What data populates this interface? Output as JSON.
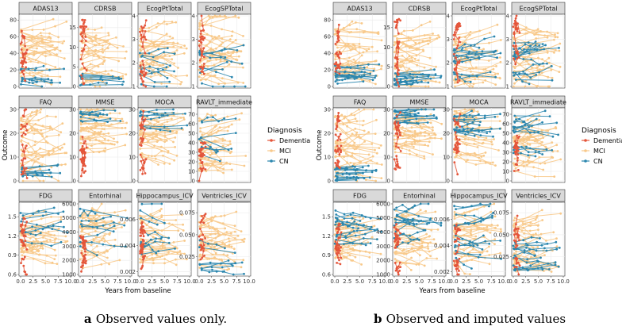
{
  "chart_data": [
    {
      "type": "line",
      "id": "a",
      "caption": {
        "letter": "a",
        "text": "Observed values only."
      },
      "xlabel": "Years from baseline",
      "ylabel": "Outcome",
      "xticks": [
        "0.0",
        "2.5",
        "5.0",
        "7.5",
        "10.0"
      ],
      "xlim": [
        0,
        10
      ],
      "legend": {
        "title": "Diagnosis",
        "position": "right",
        "entries": [
          {
            "label": "Dementia",
            "color": "#E4553A"
          },
          {
            "label": "MCI",
            "color": "#F8C98A"
          },
          {
            "label": "CN",
            "color": "#2A86AE"
          }
        ]
      },
      "panels": [
        {
          "label": "ADAS13",
          "ylim": [
            0,
            85
          ],
          "yticks": [
            {
              "v": 0,
              "t": "0"
            },
            {
              "v": 20,
              "t": "20"
            },
            {
              "v": 40,
              "t": "40"
            },
            {
              "v": 60,
              "t": "60"
            },
            {
              "v": 80,
              "t": "80"
            }
          ],
          "ranges": {
            "Dementia": [
              15,
              70
            ],
            "MCI": [
              5,
              70
            ],
            "CN": [
              1,
              25
            ]
          }
        },
        {
          "label": "CDRSB",
          "ylim": [
            0,
            18
          ],
          "yticks": [
            {
              "v": 0,
              "t": "0"
            },
            {
              "v": 5,
              "t": "5"
            },
            {
              "v": 10,
              "t": "10"
            },
            {
              "v": 15,
              "t": "15"
            }
          ],
          "ranges": {
            "Dementia": [
              2,
              17
            ],
            "MCI": [
              0.5,
              14
            ],
            "CN": [
              0,
              4
            ]
          }
        },
        {
          "label": "EcogPtTotal",
          "ylim": [
            1,
            4
          ],
          "yticks": [
            {
              "v": 1,
              "t": "1"
            },
            {
              "v": 2,
              "t": "2"
            },
            {
              "v": 3,
              "t": "3"
            },
            {
              "v": 4,
              "t": "4"
            }
          ],
          "ranges": {
            "Dementia": [
              1.2,
              3.7
            ],
            "MCI": [
              1.1,
              3.4
            ],
            "CN": [
              1,
              2.8
            ]
          }
        },
        {
          "label": "EcogSPTotal",
          "ylim": [
            1,
            4
          ],
          "yticks": [
            {
              "v": 1,
              "t": "1"
            },
            {
              "v": 2,
              "t": "2"
            },
            {
              "v": 3,
              "t": "3"
            },
            {
              "v": 4,
              "t": "4"
            }
          ],
          "ranges": {
            "Dementia": [
              1.5,
              4
            ],
            "MCI": [
              1.1,
              3.8
            ],
            "CN": [
              1,
              3
            ]
          }
        },
        {
          "label": "FAQ",
          "ylim": [
            0,
            30
          ],
          "yticks": [
            {
              "v": 0,
              "t": "0"
            },
            {
              "v": 10,
              "t": "10"
            },
            {
              "v": 20,
              "t": "20"
            },
            {
              "v": 30,
              "t": "30"
            }
          ],
          "ranges": {
            "Dementia": [
              3,
              30
            ],
            "MCI": [
              0,
              28
            ],
            "CN": [
              0,
              6
            ]
          }
        },
        {
          "label": "MMSE",
          "ylim": [
            0,
            30
          ],
          "yticks": [
            {
              "v": 0,
              "t": "0"
            },
            {
              "v": 10,
              "t": "10"
            },
            {
              "v": 20,
              "t": "20"
            },
            {
              "v": 30,
              "t": "30"
            }
          ],
          "ranges": {
            "Dementia": [
              2,
              28
            ],
            "MCI": [
              12,
              30
            ],
            "CN": [
              24,
              30
            ]
          }
        },
        {
          "label": "MOCA",
          "ylim": [
            0,
            30
          ],
          "yticks": [
            {
              "v": 0,
              "t": "0"
            },
            {
              "v": 10,
              "t": "10"
            },
            {
              "v": 20,
              "t": "20"
            },
            {
              "v": 30,
              "t": "30"
            }
          ],
          "ranges": {
            "Dementia": [
              3,
              27
            ],
            "MCI": [
              10,
              30
            ],
            "CN": [
              20,
              30
            ]
          }
        },
        {
          "label": "RAVLT_immediate",
          "ylim": [
            0,
            75
          ],
          "yticks": [
            {
              "v": 0,
              "t": "0"
            },
            {
              "v": 10,
              "t": "10"
            },
            {
              "v": 20,
              "t": "20"
            },
            {
              "v": 30,
              "t": "30"
            },
            {
              "v": 40,
              "t": "40"
            },
            {
              "v": 50,
              "t": "50"
            },
            {
              "v": 60,
              "t": "60"
            },
            {
              "v": 70,
              "t": "70"
            }
          ],
          "ranges": {
            "Dementia": [
              2,
              45
            ],
            "MCI": [
              10,
              65
            ],
            "CN": [
              20,
              70
            ]
          }
        },
        {
          "label": "FDG",
          "ylim": [
            0.6,
            1.7
          ],
          "yticks": [
            {
              "v": 0.6,
              "t": "0.6"
            },
            {
              "v": 0.9,
              "t": "0.9"
            },
            {
              "v": 1.2,
              "t": "1.2"
            },
            {
              "v": 1.5,
              "t": "1.5"
            }
          ],
          "ranges": {
            "Dementia": [
              0.7,
              1.4
            ],
            "MCI": [
              0.85,
              1.5
            ],
            "CN": [
              1,
              1.6
            ]
          }
        },
        {
          "label": "Entorhinal",
          "ylim": [
            1000,
            6000
          ],
          "yticks": [
            {
              "v": 1000,
              "t": "1000"
            },
            {
              "v": 2000,
              "t": "2000"
            },
            {
              "v": 3000,
              "t": "3000"
            },
            {
              "v": 4000,
              "t": "4000"
            },
            {
              "v": 5000,
              "t": "5000"
            },
            {
              "v": 6000,
              "t": "6000"
            }
          ],
          "ranges": {
            "Dementia": [
              1200,
              4500
            ],
            "MCI": [
              1500,
              5500
            ],
            "CN": [
              2500,
              5800
            ]
          }
        },
        {
          "label": "Hippocampus_ICV",
          "ylim": [
            0.0018,
            0.0072
          ],
          "yticks": [
            {
              "v": 0.002,
              "t": "0.002"
            },
            {
              "v": 0.004,
              "t": "0.004"
            },
            {
              "v": 0.006,
              "t": "0.006"
            }
          ],
          "ranges": {
            "Dementia": [
              0.002,
              0.0055
            ],
            "MCI": [
              0.0025,
              0.0065
            ],
            "CN": [
              0.003,
              0.007
            ]
          }
        },
        {
          "label": "Ventricles_ICV",
          "ylim": [
            0.005,
            0.085
          ],
          "yticks": [
            {
              "v": 0.025,
              "t": "0.025"
            },
            {
              "v": 0.05,
              "t": "0.050"
            },
            {
              "v": 0.075,
              "t": "0.075"
            }
          ],
          "ranges": {
            "Dementia": [
              0.015,
              0.08
            ],
            "MCI": [
              0.01,
              0.07
            ],
            "CN": [
              0.008,
              0.045
            ]
          }
        }
      ]
    },
    {
      "type": "line",
      "id": "b",
      "caption": {
        "letter": "b",
        "text": "Observed and imputed values"
      },
      "xlabel": "Years from baseline",
      "ylabel": "Outcome",
      "xticks": [
        "0.0",
        "2.5",
        "5.0",
        "7.5",
        "10.0"
      ],
      "xlim": [
        0,
        10
      ],
      "legend": {
        "title": "Diagnosis",
        "position": "right",
        "entries": [
          {
            "label": "Dementia",
            "color": "#E4553A"
          },
          {
            "label": "MCI",
            "color": "#F8C98A"
          },
          {
            "label": "CN",
            "color": "#2A86AE"
          }
        ]
      },
      "panels": [
        {
          "label": "ADAS13",
          "ylim": [
            0,
            85
          ],
          "yticks": [
            {
              "v": 0,
              "t": "0"
            },
            {
              "v": 20,
              "t": "20"
            },
            {
              "v": 40,
              "t": "40"
            },
            {
              "v": 60,
              "t": "60"
            },
            {
              "v": 80,
              "t": "80"
            }
          ],
          "ranges": {
            "Dementia": [
              15,
              70
            ],
            "MCI": [
              5,
              70
            ],
            "CN": [
              1,
              25
            ]
          }
        },
        {
          "label": "CDRSB",
          "ylim": [
            0,
            18
          ],
          "yticks": [
            {
              "v": 0,
              "t": "0"
            },
            {
              "v": 5,
              "t": "5"
            },
            {
              "v": 10,
              "t": "10"
            },
            {
              "v": 15,
              "t": "15"
            }
          ],
          "ranges": {
            "Dementia": [
              2,
              17
            ],
            "MCI": [
              0.5,
              14
            ],
            "CN": [
              0,
              4
            ]
          }
        },
        {
          "label": "EcogPtTotal",
          "ylim": [
            1,
            4
          ],
          "yticks": [
            {
              "v": 1,
              "t": "1"
            },
            {
              "v": 2,
              "t": "2"
            },
            {
              "v": 3,
              "t": "3"
            },
            {
              "v": 4,
              "t": "4"
            }
          ],
          "ranges": {
            "Dementia": [
              1.2,
              3.7
            ],
            "MCI": [
              1.1,
              3.4
            ],
            "CN": [
              1,
              2.8
            ]
          }
        },
        {
          "label": "EcogSPTotal",
          "ylim": [
            1,
            4
          ],
          "yticks": [
            {
              "v": 1,
              "t": "1"
            },
            {
              "v": 2,
              "t": "2"
            },
            {
              "v": 3,
              "t": "3"
            },
            {
              "v": 4,
              "t": "4"
            }
          ],
          "ranges": {
            "Dementia": [
              1.5,
              4
            ],
            "MCI": [
              1.1,
              3.8
            ],
            "CN": [
              1,
              3
            ]
          }
        },
        {
          "label": "FAQ",
          "ylim": [
            0,
            30
          ],
          "yticks": [
            {
              "v": 0,
              "t": "0"
            },
            {
              "v": 10,
              "t": "10"
            },
            {
              "v": 20,
              "t": "20"
            },
            {
              "v": 30,
              "t": "30"
            }
          ],
          "ranges": {
            "Dementia": [
              3,
              30
            ],
            "MCI": [
              0,
              28
            ],
            "CN": [
              0,
              6
            ]
          }
        },
        {
          "label": "MMSE",
          "ylim": [
            0,
            30
          ],
          "yticks": [
            {
              "v": 0,
              "t": "0"
            },
            {
              "v": 10,
              "t": "10"
            },
            {
              "v": 20,
              "t": "20"
            },
            {
              "v": 30,
              "t": "30"
            }
          ],
          "ranges": {
            "Dementia": [
              2,
              28
            ],
            "MCI": [
              12,
              30
            ],
            "CN": [
              24,
              30
            ]
          }
        },
        {
          "label": "MOCA",
          "ylim": [
            0,
            30
          ],
          "yticks": [
            {
              "v": 0,
              "t": "0"
            },
            {
              "v": 10,
              "t": "10"
            },
            {
              "v": 20,
              "t": "20"
            },
            {
              "v": 30,
              "t": "30"
            }
          ],
          "ranges": {
            "Dementia": [
              3,
              27
            ],
            "MCI": [
              10,
              30
            ],
            "CN": [
              20,
              30
            ]
          }
        },
        {
          "label": "RAVLT_immediate",
          "ylim": [
            0,
            75
          ],
          "yticks": [
            {
              "v": 0,
              "t": "0"
            },
            {
              "v": 10,
              "t": "10"
            },
            {
              "v": 20,
              "t": "20"
            },
            {
              "v": 30,
              "t": "30"
            },
            {
              "v": 40,
              "t": "40"
            },
            {
              "v": 50,
              "t": "50"
            },
            {
              "v": 60,
              "t": "60"
            },
            {
              "v": 70,
              "t": "70"
            }
          ],
          "ranges": {
            "Dementia": [
              2,
              45
            ],
            "MCI": [
              10,
              65
            ],
            "CN": [
              20,
              70
            ]
          }
        },
        {
          "label": "FDG",
          "ylim": [
            0.6,
            1.7
          ],
          "yticks": [
            {
              "v": 0.6,
              "t": "0.6"
            },
            {
              "v": 0.9,
              "t": "0.9"
            },
            {
              "v": 1.2,
              "t": "1.2"
            },
            {
              "v": 1.5,
              "t": "1.5"
            }
          ],
          "ranges": {
            "Dementia": [
              0.7,
              1.4
            ],
            "MCI": [
              0.85,
              1.5
            ],
            "CN": [
              1,
              1.6
            ]
          }
        },
        {
          "label": "Entorhinal",
          "ylim": [
            1000,
            6000
          ],
          "yticks": [
            {
              "v": 1000,
              "t": "1000"
            },
            {
              "v": 2000,
              "t": "2000"
            },
            {
              "v": 3000,
              "t": "3000"
            },
            {
              "v": 4000,
              "t": "4000"
            },
            {
              "v": 5000,
              "t": "5000"
            },
            {
              "v": 6000,
              "t": "6000"
            }
          ],
          "ranges": {
            "Dementia": [
              1200,
              4500
            ],
            "MCI": [
              1500,
              5500
            ],
            "CN": [
              2500,
              5800
            ]
          }
        },
        {
          "label": "Hippocampus_ICV",
          "ylim": [
            0.0018,
            0.0072
          ],
          "yticks": [
            {
              "v": 0.002,
              "t": "0.002"
            },
            {
              "v": 0.004,
              "t": "0.004"
            },
            {
              "v": 0.006,
              "t": "0.006"
            }
          ],
          "ranges": {
            "Dementia": [
              0.002,
              0.0055
            ],
            "MCI": [
              0.0025,
              0.0065
            ],
            "CN": [
              0.003,
              0.007
            ]
          }
        },
        {
          "label": "Ventricles_ICV",
          "ylim": [
            0.005,
            0.085
          ],
          "yticks": [
            {
              "v": 0.025,
              "t": "0.025"
            },
            {
              "v": 0.05,
              "t": "0.050"
            },
            {
              "v": 0.075,
              "t": "0.075"
            }
          ],
          "ranges": {
            "Dementia": [
              0.015,
              0.08
            ],
            "MCI": [
              0.01,
              0.07
            ],
            "CN": [
              0.008,
              0.045
            ]
          }
        }
      ]
    }
  ]
}
